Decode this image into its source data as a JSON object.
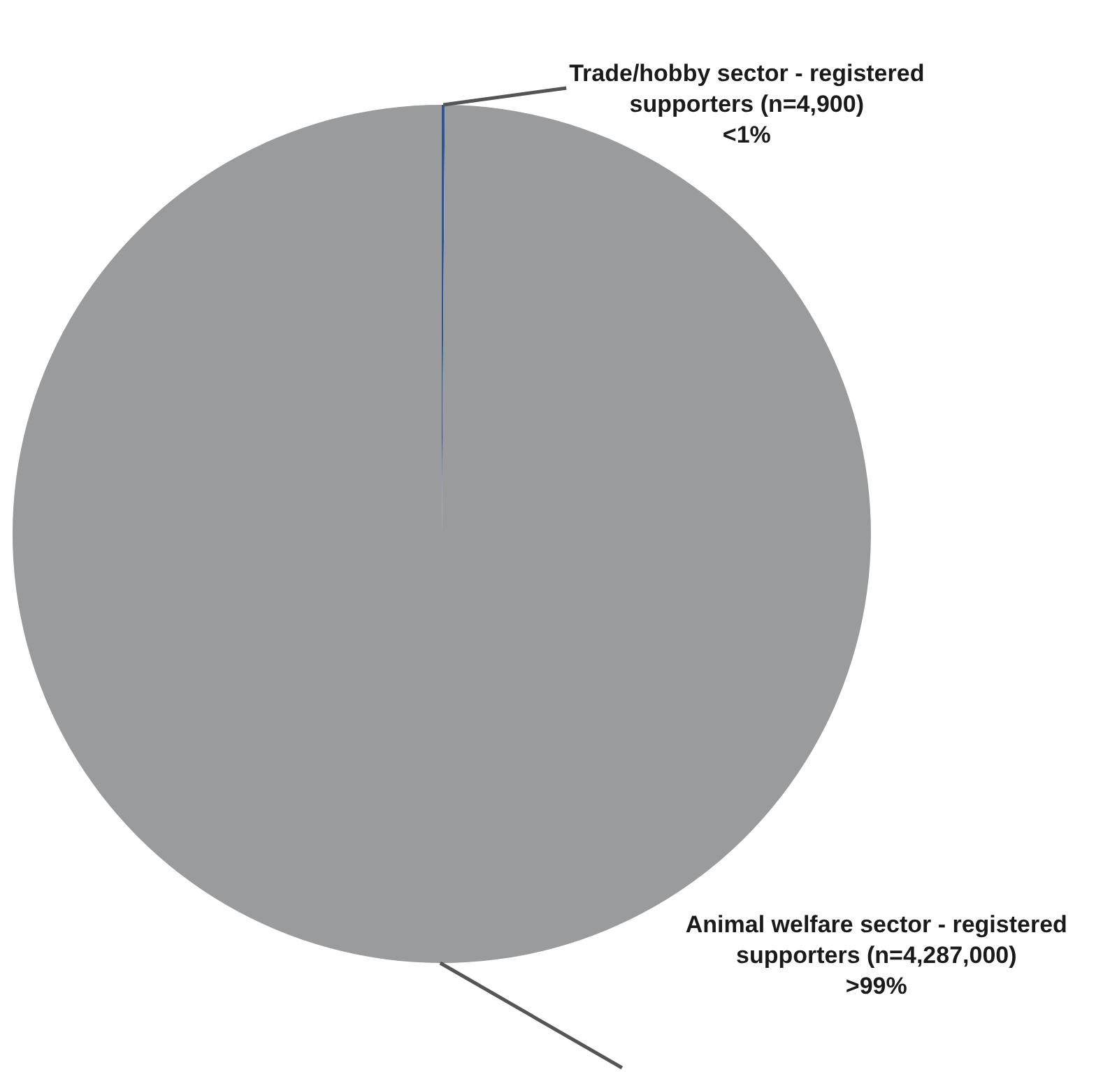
{
  "chart_data": {
    "type": "pie",
    "categories": [
      "Trade/hobby sector - registered supporters (n=4,900)",
      "Animal welfare sector - registered supporters (n=4,287,000)"
    ],
    "values": [
      4900,
      4287000
    ],
    "colors": [
      "#2f5597",
      "#9a9b9d"
    ],
    "value_labels": [
      "<1%",
      ">99%"
    ],
    "legend": false
  }
}
